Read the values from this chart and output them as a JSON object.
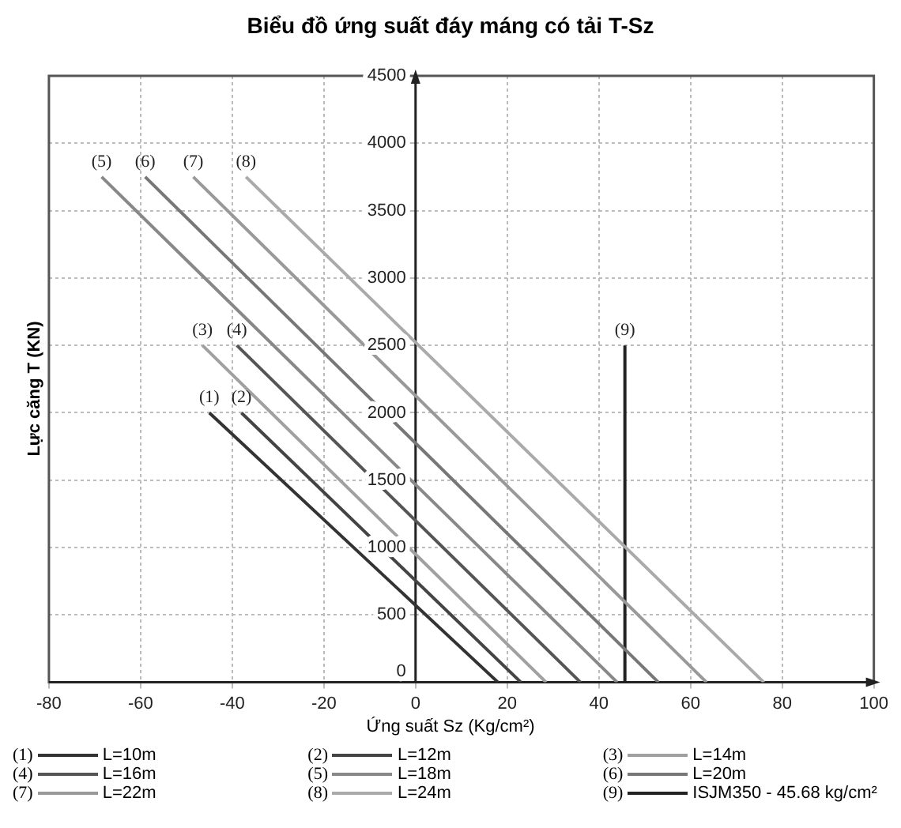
{
  "chart_data": {
    "type": "line",
    "title": "Biểu đồ ứng suất đáy máng có tải T-Sz",
    "xlabel": "Ứng suất Sz (Kg/cm²)",
    "ylabel": "Lực căng T (KN)",
    "xlim": [
      -80,
      100
    ],
    "xticks": [
      -80,
      -60,
      -40,
      -20,
      0,
      20,
      40,
      60,
      80,
      100
    ],
    "ylim": [
      0,
      4500
    ],
    "yticks": [
      0,
      500,
      1000,
      1500,
      2000,
      2500,
      3000,
      3500,
      4000,
      4500
    ],
    "grid": true,
    "legend": "bottom",
    "marker": "none",
    "line_style": "solid",
    "series": [
      {
        "name": "L=10m",
        "color": "#333333",
        "x": [
          -45,
          18
        ],
        "values": [
          2000,
          0
        ]
      },
      {
        "name": "L=12m",
        "color": "#444444",
        "x": [
          -38,
          23
        ],
        "values": [
          2000,
          0
        ]
      },
      {
        "name": "L=14m",
        "color": "#a0a0a0",
        "x": [
          -46.5,
          28.5
        ],
        "values": [
          2500,
          0
        ]
      },
      {
        "name": "L=16m",
        "color": "#555555",
        "x": [
          -39,
          36
        ],
        "values": [
          2500,
          0
        ]
      },
      {
        "name": "L=18m",
        "color": "#888888",
        "x": [
          -68.5,
          44
        ],
        "values": [
          3750,
          0
        ]
      },
      {
        "name": "L=20m",
        "color": "#777777",
        "x": [
          -59,
          53
        ],
        "values": [
          3750,
          0
        ]
      },
      {
        "name": "L=22m",
        "color": "#999999",
        "x": [
          -48.5,
          63.5
        ],
        "values": [
          3750,
          0
        ]
      },
      {
        "name": "L=24m",
        "color": "#aaaaaa",
        "x": [
          -37,
          76
        ],
        "values": [
          3750,
          0
        ]
      },
      {
        "name": "ISJM350 - 45.68 kg/cm²",
        "color": "#222222",
        "x": [
          45.68,
          45.68
        ],
        "values": [
          0,
          2500
        ]
      }
    ],
    "annotations": [
      {
        "text": "(1)",
        "x": -45,
        "y": 2000
      },
      {
        "text": "(2)",
        "x": -38,
        "y": 2000
      },
      {
        "text": "(3)",
        "x": -46.5,
        "y": 2500
      },
      {
        "text": "(4)",
        "x": -39,
        "y": 2500
      },
      {
        "text": "(5)",
        "x": -68.5,
        "y": 3750
      },
      {
        "text": "(6)",
        "x": -59,
        "y": 3750
      },
      {
        "text": "(7)",
        "x": -48.5,
        "y": 3750
      },
      {
        "text": "(8)",
        "x": -37,
        "y": 3750
      },
      {
        "text": "(9)",
        "x": 45.68,
        "y": 2500
      }
    ]
  }
}
